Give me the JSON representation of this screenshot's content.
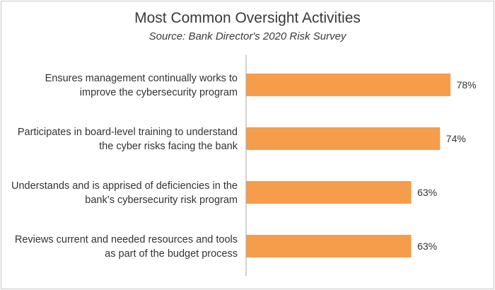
{
  "chart_data": {
    "type": "bar",
    "orientation": "horizontal",
    "title": "Most Common Oversight Activities",
    "subtitle": "Source: Bank Director's 2020 Risk Survey",
    "categories": [
      [
        "Ensures management continually works to",
        "improve the cybersecurity program"
      ],
      [
        "Participates in board-level training to understand",
        "the cyber risks facing the bank"
      ],
      [
        "Understands and is apprised of deficiencies in the",
        "bank’s cybersecurity risk program"
      ],
      [
        "Reviews current and needed resources and tools",
        "as part of the budget process"
      ]
    ],
    "values": [
      78,
      74,
      63,
      63
    ],
    "value_labels": [
      "78%",
      "74%",
      "63%",
      "63%"
    ],
    "bar_color": "#f59d4b",
    "axis_color": "#a6a6a6",
    "grid": false,
    "legend": "none"
  }
}
